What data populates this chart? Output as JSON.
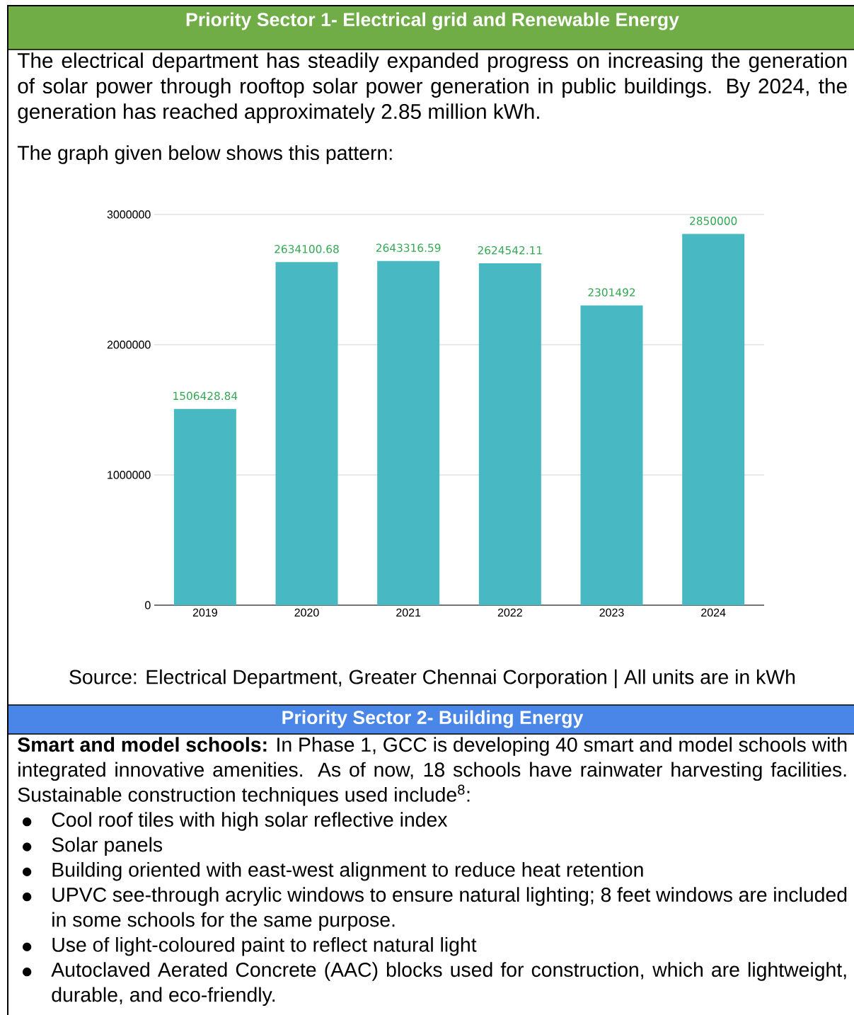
{
  "chart_data": {
    "type": "bar",
    "title": "Priority Sector 1- Electrical grid and Renewable Energy",
    "subtitle": "The electrical department has steadily expanded progress on increasing the generation of solar power through rooftop solar power generation in public buildings. By 2024, the generation has reached approximately 2.85 million kWh.",
    "annotations": [
      "The graph given below shows this pattern:",
      "Source: Electrical Department, Greater Chennai Corporation | All units are in kWh",
      "Priority Sector 2- Building Energy",
      "**Smart and model schools:** In Phase 1, GCC is developing 40 smart and model schools with integrated innovative amenities. As of now, 18 schools have rainwater harvesting facilities. Sustainable construction techniques used include$^{8}$:",
      "Cool roof tiles with high solar reflective index",
      "Solar panels",
      "Building oriented with east-west alignment to reduce heat retention",
      "UPVC see-through acrylic windows to ensure natural lighting; 8 feet windows are included in some schools for the same purpose.",
      "Use of light-coloured paint to reflect natural light",
      "Autoclaved Aerated Concrete (AAC) blocks used for construction, which are lightweight, durable, and eco-friendly."
    ],
    "categories": [
      "2019",
      "2020",
      "2021",
      "2022",
      "2023",
      "2024"
    ],
    "values": [
      1506428.84,
      2634100.68,
      2643316.59,
      2624542.11,
      2301492,
      2850000
    ],
    "color": "#48b8c3",
    "data_labels": true,
    "ylim": [
      0,
      3000000
    ],
    "yticks": [
      0,
      1000000,
      2000000,
      3000000
    ],
    "grid": "y"
  }
}
